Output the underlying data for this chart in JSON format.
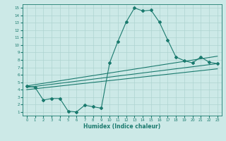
{
  "xlabel": "Humidex (Indice chaleur)",
  "ylabel": "",
  "xlim": [
    -0.5,
    23.5
  ],
  "ylim": [
    0.5,
    15.5
  ],
  "xticks": [
    0,
    1,
    2,
    3,
    4,
    5,
    6,
    7,
    8,
    9,
    10,
    11,
    12,
    13,
    14,
    15,
    16,
    17,
    18,
    19,
    20,
    21,
    22,
    23
  ],
  "yticks": [
    1,
    2,
    3,
    4,
    5,
    6,
    7,
    8,
    9,
    10,
    11,
    12,
    13,
    14,
    15
  ],
  "bg_color": "#cce9e7",
  "line_color": "#1a7a6e",
  "grid_color": "#aed4d1",
  "curve1_x": [
    0,
    1,
    2,
    3,
    4,
    5,
    6,
    7,
    8,
    9,
    10,
    11,
    12,
    13,
    14,
    15,
    16,
    17,
    18,
    19,
    20,
    21,
    22,
    23
  ],
  "curve1_y": [
    4.5,
    4.3,
    2.6,
    2.8,
    2.8,
    1.1,
    1.0,
    1.9,
    1.7,
    1.5,
    7.6,
    10.5,
    13.1,
    15.0,
    14.6,
    14.7,
    13.1,
    10.7,
    8.4,
    7.9,
    7.6,
    8.4,
    7.7,
    7.5
  ],
  "line1_x": [
    0,
    23
  ],
  "line1_y": [
    4.5,
    8.5
  ],
  "line2_x": [
    0,
    23
  ],
  "line2_y": [
    4.3,
    7.5
  ],
  "line3_x": [
    0,
    23
  ],
  "line3_y": [
    4.0,
    6.8
  ]
}
